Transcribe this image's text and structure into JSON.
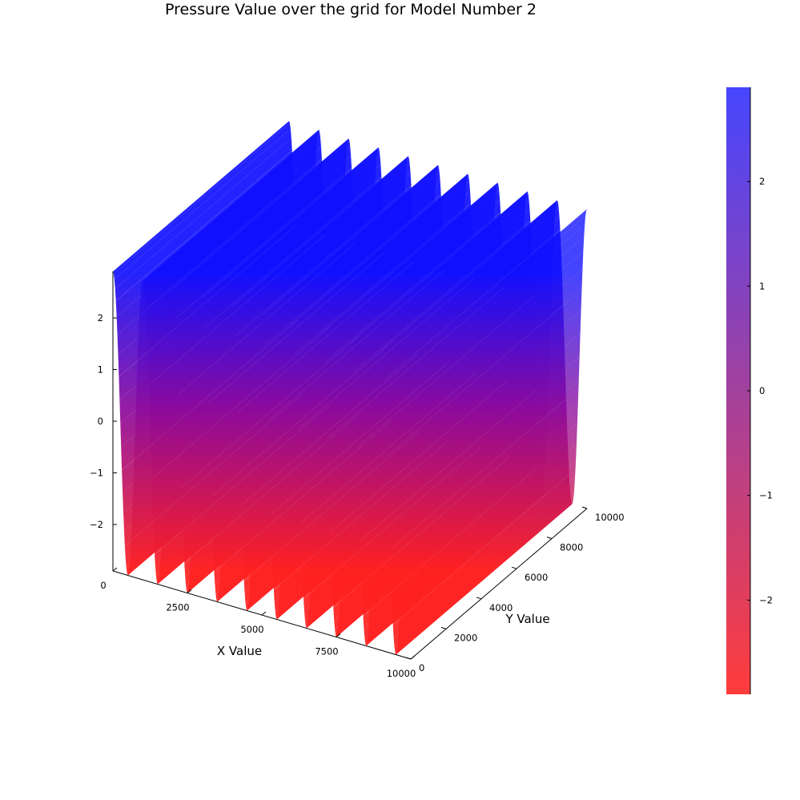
{
  "chart_data": {
    "type": "surface",
    "title": "Pressure Value over the grid for Model Number 2",
    "xlabel": "X Value",
    "ylabel": "Y Value",
    "zlabel": "",
    "xlim": [
      0,
      10000
    ],
    "ylim": [
      0,
      10000
    ],
    "zlim": [
      -2.9,
      2.9
    ],
    "x_ticks": [
      0,
      2500,
      5000,
      7500,
      10000
    ],
    "x_tick_labels": [
      "0",
      "2500",
      "5000",
      "7500",
      "10000"
    ],
    "y_ticks": [
      0,
      2000,
      4000,
      6000,
      8000,
      10000
    ],
    "y_tick_labels": [
      "0",
      "2000",
      "4000",
      "6000",
      "8000",
      "10000"
    ],
    "z_ticks": [
      -2,
      -1,
      0,
      1,
      2
    ],
    "z_tick_labels": [
      "−2",
      "−1",
      "0",
      "1",
      "2"
    ],
    "colorbar": {
      "range": [
        -2.9,
        2.9
      ],
      "ticks": [
        -2,
        -1,
        0,
        1,
        2
      ],
      "tick_labels": [
        "−2",
        "−1",
        "0",
        "1",
        "2"
      ],
      "low_color": "#ff3c3c",
      "high_color": "#4646ff"
    },
    "surface_color_low": "#ff2020",
    "surface_color_high": "#1010ff",
    "function": "z = 2.9 * cos(2*pi*x / 1000), constant along y",
    "wavelength_x": 1000,
    "amplitude": 2.9,
    "grid": false,
    "legend": "none"
  }
}
